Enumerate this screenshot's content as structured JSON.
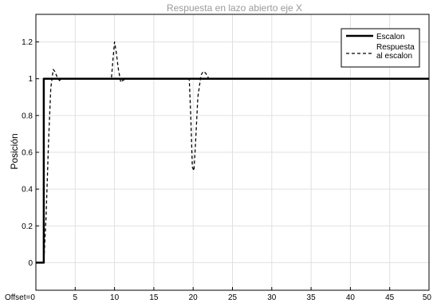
{
  "chart_data": {
    "type": "line",
    "title": "Respuesta en lazo abierto eje X",
    "xlabel": "",
    "ylabel": "Posición",
    "xlim": [
      0,
      50
    ],
    "ylim": [
      -0.15,
      1.35
    ],
    "xticks": [
      0,
      5,
      10,
      15,
      20,
      25,
      30,
      35,
      40,
      45,
      50
    ],
    "xtick_labels": [
      "Offset=0",
      "5",
      "10",
      "15",
      "20",
      "25",
      "30",
      "35",
      "40",
      "45",
      "50"
    ],
    "yticks": [
      0,
      0.2,
      0.4,
      0.6,
      0.8,
      1,
      1.2
    ],
    "ytick_labels": [
      "0",
      "0.2",
      "0.4",
      "0.6",
      "0.8",
      "1",
      "1.2"
    ],
    "grid": true,
    "legend_position": "top-right",
    "series": [
      {
        "name": "Escalon",
        "style": "solid",
        "color": "#000000",
        "x": [
          0,
          1,
          1,
          50
        ],
        "y": [
          0,
          0,
          1,
          1
        ]
      },
      {
        "name": "Respuesta al escalon",
        "style": "dashed",
        "color": "#000000",
        "x": [
          0,
          1,
          1.3,
          1.6,
          1.9,
          2.2,
          2.4,
          2.7,
          3.0,
          3.3,
          9.6,
          9.8,
          10.0,
          10.2,
          10.5,
          10.8,
          11.0,
          11.5,
          19.5,
          19.7,
          19.9,
          20.1,
          20.3,
          20.6,
          21.0,
          21.3,
          21.6,
          22.0,
          50
        ],
        "y": [
          0,
          0,
          0.25,
          0.65,
          0.95,
          1.05,
          1.04,
          1.01,
          0.99,
          1.0,
          1.0,
          1.1,
          1.2,
          1.15,
          1.05,
          0.98,
          0.99,
          1.0,
          1.0,
          0.8,
          0.52,
          0.5,
          0.65,
          0.9,
          1.02,
          1.04,
          1.03,
          1.0,
          1.0
        ]
      }
    ]
  }
}
